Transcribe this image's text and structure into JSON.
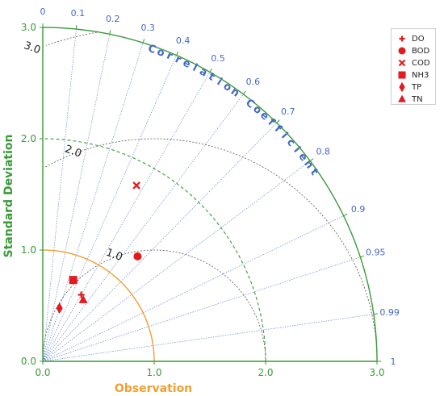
{
  "chart_data": {
    "type": "scatter",
    "subtype": "taylor-diagram",
    "title": "",
    "xlabel": "Observation",
    "ylabel": "Standard Deviation",
    "arc_label": "Correlation Coefficient",
    "std_range": [
      0,
      3.0
    ],
    "reference_std": 1.0,
    "axis_ticks": [
      "0.0",
      "1.0",
      "2.0",
      "3.0"
    ],
    "axis_tick_values": [
      0,
      1,
      2,
      3
    ],
    "correlation_ticks": [
      "0",
      "0.1",
      "0.2",
      "0.3",
      "0.4",
      "0.5",
      "0.6",
      "0.7",
      "0.8",
      "0.9",
      "0.95",
      "0.99",
      "1"
    ],
    "correlation_tick_values": [
      0,
      0.1,
      0.2,
      0.3,
      0.4,
      0.5,
      0.6,
      0.7,
      0.8,
      0.9,
      0.95,
      0.99,
      1
    ],
    "rms_contours": [
      "1.0",
      "2.0",
      "3.0"
    ],
    "rms_contour_values": [
      1,
      2,
      3
    ],
    "std_reference_arc": 2.0,
    "legend_position": "top-right",
    "series": [
      {
        "name": "DO",
        "marker": "plus",
        "std": 0.69,
        "corr": 0.5
      },
      {
        "name": "BOD",
        "marker": "circle",
        "std": 1.27,
        "corr": 0.67
      },
      {
        "name": "COD",
        "marker": "x",
        "std": 1.79,
        "corr": 0.47
      },
      {
        "name": "NH3",
        "marker": "square",
        "std": 0.78,
        "corr": 0.35
      },
      {
        "name": "TP",
        "marker": "diamond",
        "std": 0.5,
        "corr": 0.3
      },
      {
        "name": "TN",
        "marker": "triangle",
        "std": 0.66,
        "corr": 0.55
      }
    ]
  },
  "colors": {
    "axis_green": "#3a9a3a",
    "observation_orange": "#f0a030",
    "correlation_blue": "#4468c8",
    "marker_red": "#e41a1c",
    "contour_gray": "#555555"
  }
}
